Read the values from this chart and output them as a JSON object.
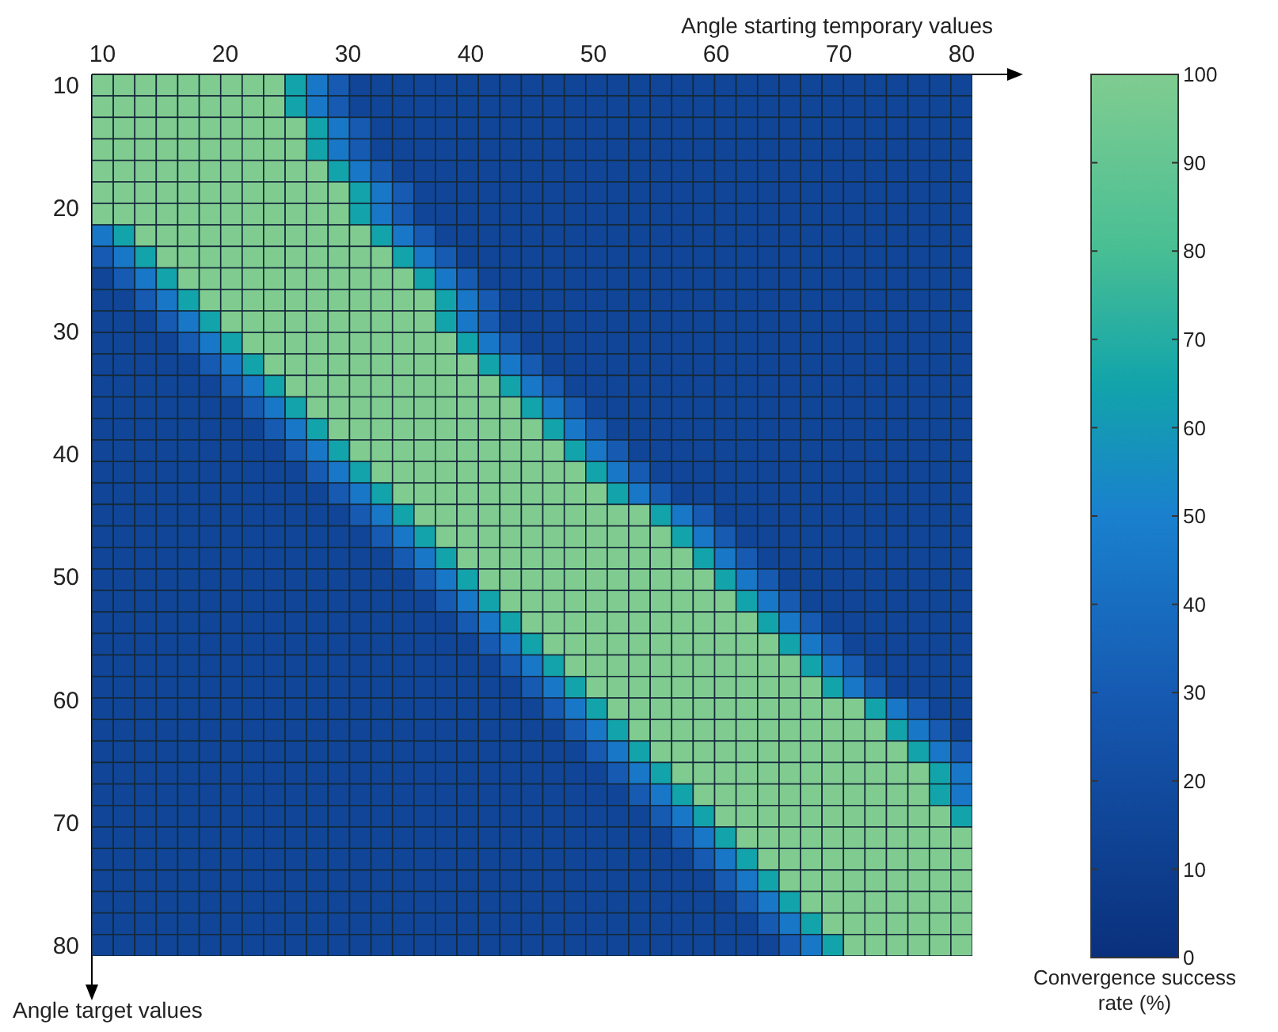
{
  "chart_data": {
    "type": "heatmap",
    "xlabel": "Angle starting temporary values",
    "ylabel": "Angle target values",
    "clabel": "Convergence success rate (%)",
    "xlim": [
      9.125,
      80.875
    ],
    "ylim": [
      80.875,
      9.125
    ],
    "xticks": [
      10,
      20,
      30,
      40,
      50,
      60,
      70,
      80
    ],
    "yticks": [
      10,
      20,
      30,
      40,
      50,
      60,
      70,
      80
    ],
    "clim": [
      0,
      100
    ],
    "cticks": [
      0,
      10,
      20,
      30,
      40,
      50,
      60,
      70,
      80,
      90,
      100
    ],
    "cells": [
      [
        100,
        100,
        100,
        100,
        100,
        100,
        100,
        100,
        100,
        65,
        45,
        30,
        15,
        15,
        15,
        15,
        15,
        15,
        15,
        15,
        15,
        15,
        15,
        15,
        15,
        15,
        15,
        15,
        15,
        15,
        15,
        15,
        15,
        15,
        15,
        15,
        15,
        15,
        15,
        15,
        15
      ],
      [
        100,
        100,
        100,
        100,
        100,
        100,
        100,
        100,
        100,
        65,
        45,
        30,
        15,
        15,
        15,
        15,
        15,
        15,
        15,
        15,
        15,
        15,
        15,
        15,
        15,
        15,
        15,
        15,
        15,
        15,
        15,
        15,
        15,
        15,
        15,
        15,
        15,
        15,
        15,
        15,
        15
      ],
      [
        100,
        100,
        100,
        100,
        100,
        100,
        100,
        100,
        100,
        100,
        65,
        45,
        30,
        15,
        15,
        15,
        15,
        15,
        15,
        15,
        15,
        15,
        15,
        15,
        15,
        15,
        15,
        15,
        15,
        15,
        15,
        15,
        15,
        15,
        15,
        15,
        15,
        15,
        15,
        15,
        15
      ],
      [
        100,
        100,
        100,
        100,
        100,
        100,
        100,
        100,
        100,
        100,
        65,
        45,
        30,
        15,
        15,
        15,
        15,
        15,
        15,
        15,
        15,
        15,
        15,
        15,
        15,
        15,
        15,
        15,
        15,
        15,
        15,
        15,
        15,
        15,
        15,
        15,
        15,
        15,
        15,
        15,
        15
      ],
      [
        100,
        100,
        100,
        100,
        100,
        100,
        100,
        100,
        100,
        100,
        100,
        65,
        45,
        30,
        15,
        15,
        15,
        15,
        15,
        15,
        15,
        15,
        15,
        15,
        15,
        15,
        15,
        15,
        15,
        15,
        15,
        15,
        15,
        15,
        15,
        15,
        15,
        15,
        15,
        15,
        15
      ],
      [
        100,
        100,
        100,
        100,
        100,
        100,
        100,
        100,
        100,
        100,
        100,
        100,
        65,
        45,
        30,
        15,
        15,
        15,
        15,
        15,
        15,
        15,
        15,
        15,
        15,
        15,
        15,
        15,
        15,
        15,
        15,
        15,
        15,
        15,
        15,
        15,
        15,
        15,
        15,
        15,
        15
      ],
      [
        100,
        100,
        100,
        100,
        100,
        100,
        100,
        100,
        100,
        100,
        100,
        100,
        65,
        45,
        30,
        15,
        15,
        15,
        15,
        15,
        15,
        15,
        15,
        15,
        15,
        15,
        15,
        15,
        15,
        15,
        15,
        15,
        15,
        15,
        15,
        15,
        15,
        15,
        15,
        15,
        15
      ],
      [
        45,
        65,
        100,
        100,
        100,
        100,
        100,
        100,
        100,
        100,
        100,
        100,
        100,
        65,
        45,
        30,
        15,
        15,
        15,
        15,
        15,
        15,
        15,
        15,
        15,
        15,
        15,
        15,
        15,
        15,
        15,
        15,
        15,
        15,
        15,
        15,
        15,
        15,
        15,
        15,
        15
      ],
      [
        30,
        45,
        65,
        100,
        100,
        100,
        100,
        100,
        100,
        100,
        100,
        100,
        100,
        100,
        65,
        45,
        30,
        15,
        15,
        15,
        15,
        15,
        15,
        15,
        15,
        15,
        15,
        15,
        15,
        15,
        15,
        15,
        15,
        15,
        15,
        15,
        15,
        15,
        15,
        15,
        15
      ],
      [
        15,
        30,
        45,
        65,
        100,
        100,
        100,
        100,
        100,
        100,
        100,
        100,
        100,
        100,
        100,
        65,
        45,
        30,
        15,
        15,
        15,
        15,
        15,
        15,
        15,
        15,
        15,
        15,
        15,
        15,
        15,
        15,
        15,
        15,
        15,
        15,
        15,
        15,
        15,
        15,
        15
      ],
      [
        15,
        15,
        30,
        45,
        65,
        100,
        100,
        100,
        100,
        100,
        100,
        100,
        100,
        100,
        100,
        100,
        65,
        45,
        30,
        15,
        15,
        15,
        15,
        15,
        15,
        15,
        15,
        15,
        15,
        15,
        15,
        15,
        15,
        15,
        15,
        15,
        15,
        15,
        15,
        15,
        15
      ],
      [
        15,
        15,
        15,
        30,
        45,
        65,
        100,
        100,
        100,
        100,
        100,
        100,
        100,
        100,
        100,
        100,
        65,
        45,
        30,
        15,
        15,
        15,
        15,
        15,
        15,
        15,
        15,
        15,
        15,
        15,
        15,
        15,
        15,
        15,
        15,
        15,
        15,
        15,
        15,
        15,
        15
      ],
      [
        15,
        15,
        15,
        15,
        30,
        45,
        65,
        100,
        100,
        100,
        100,
        100,
        100,
        100,
        100,
        100,
        100,
        65,
        45,
        30,
        15,
        15,
        15,
        15,
        15,
        15,
        15,
        15,
        15,
        15,
        15,
        15,
        15,
        15,
        15,
        15,
        15,
        15,
        15,
        15,
        15
      ],
      [
        15,
        15,
        15,
        15,
        15,
        30,
        45,
        65,
        100,
        100,
        100,
        100,
        100,
        100,
        100,
        100,
        100,
        100,
        65,
        45,
        30,
        15,
        15,
        15,
        15,
        15,
        15,
        15,
        15,
        15,
        15,
        15,
        15,
        15,
        15,
        15,
        15,
        15,
        15,
        15,
        15
      ],
      [
        15,
        15,
        15,
        15,
        15,
        15,
        30,
        45,
        65,
        100,
        100,
        100,
        100,
        100,
        100,
        100,
        100,
        100,
        100,
        65,
        45,
        30,
        15,
        15,
        15,
        15,
        15,
        15,
        15,
        15,
        15,
        15,
        15,
        15,
        15,
        15,
        15,
        15,
        15,
        15,
        15
      ],
      [
        15,
        15,
        15,
        15,
        15,
        15,
        15,
        30,
        45,
        65,
        100,
        100,
        100,
        100,
        100,
        100,
        100,
        100,
        100,
        100,
        65,
        45,
        30,
        15,
        15,
        15,
        15,
        15,
        15,
        15,
        15,
        15,
        15,
        15,
        15,
        15,
        15,
        15,
        15,
        15,
        15
      ],
      [
        15,
        15,
        15,
        15,
        15,
        15,
        15,
        15,
        30,
        45,
        65,
        100,
        100,
        100,
        100,
        100,
        100,
        100,
        100,
        100,
        100,
        65,
        45,
        30,
        15,
        15,
        15,
        15,
        15,
        15,
        15,
        15,
        15,
        15,
        15,
        15,
        15,
        15,
        15,
        15,
        15
      ],
      [
        15,
        15,
        15,
        15,
        15,
        15,
        15,
        15,
        15,
        30,
        45,
        65,
        100,
        100,
        100,
        100,
        100,
        100,
        100,
        100,
        100,
        100,
        65,
        45,
        30,
        15,
        15,
        15,
        15,
        15,
        15,
        15,
        15,
        15,
        15,
        15,
        15,
        15,
        15,
        15,
        15
      ],
      [
        15,
        15,
        15,
        15,
        15,
        15,
        15,
        15,
        15,
        15,
        30,
        45,
        65,
        100,
        100,
        100,
        100,
        100,
        100,
        100,
        100,
        100,
        100,
        65,
        45,
        30,
        15,
        15,
        15,
        15,
        15,
        15,
        15,
        15,
        15,
        15,
        15,
        15,
        15,
        15,
        15
      ],
      [
        15,
        15,
        15,
        15,
        15,
        15,
        15,
        15,
        15,
        15,
        15,
        30,
        45,
        65,
        100,
        100,
        100,
        100,
        100,
        100,
        100,
        100,
        100,
        100,
        65,
        45,
        30,
        15,
        15,
        15,
        15,
        15,
        15,
        15,
        15,
        15,
        15,
        15,
        15,
        15,
        15
      ],
      [
        15,
        15,
        15,
        15,
        15,
        15,
        15,
        15,
        15,
        15,
        15,
        15,
        30,
        45,
        65,
        100,
        100,
        100,
        100,
        100,
        100,
        100,
        100,
        100,
        100,
        100,
        65,
        45,
        30,
        15,
        15,
        15,
        15,
        15,
        15,
        15,
        15,
        15,
        15,
        15,
        15
      ],
      [
        15,
        15,
        15,
        15,
        15,
        15,
        15,
        15,
        15,
        15,
        15,
        15,
        15,
        30,
        45,
        65,
        100,
        100,
        100,
        100,
        100,
        100,
        100,
        100,
        100,
        100,
        100,
        65,
        45,
        30,
        15,
        15,
        15,
        15,
        15,
        15,
        15,
        15,
        15,
        15,
        15
      ],
      [
        15,
        15,
        15,
        15,
        15,
        15,
        15,
        15,
        15,
        15,
        15,
        15,
        15,
        15,
        30,
        45,
        65,
        100,
        100,
        100,
        100,
        100,
        100,
        100,
        100,
        100,
        100,
        100,
        65,
        45,
        30,
        15,
        15,
        15,
        15,
        15,
        15,
        15,
        15,
        15,
        15
      ],
      [
        15,
        15,
        15,
        15,
        15,
        15,
        15,
        15,
        15,
        15,
        15,
        15,
        15,
        15,
        15,
        30,
        45,
        65,
        100,
        100,
        100,
        100,
        100,
        100,
        100,
        100,
        100,
        100,
        100,
        65,
        45,
        30,
        15,
        15,
        15,
        15,
        15,
        15,
        15,
        15,
        15
      ],
      [
        15,
        15,
        15,
        15,
        15,
        15,
        15,
        15,
        15,
        15,
        15,
        15,
        15,
        15,
        15,
        15,
        30,
        45,
        65,
        100,
        100,
        100,
        100,
        100,
        100,
        100,
        100,
        100,
        100,
        100,
        65,
        45,
        30,
        15,
        15,
        15,
        15,
        15,
        15,
        15,
        15
      ],
      [
        15,
        15,
        15,
        15,
        15,
        15,
        15,
        15,
        15,
        15,
        15,
        15,
        15,
        15,
        15,
        15,
        15,
        30,
        45,
        65,
        100,
        100,
        100,
        100,
        100,
        100,
        100,
        100,
        100,
        100,
        100,
        65,
        45,
        30,
        15,
        15,
        15,
        15,
        15,
        15,
        15
      ],
      [
        15,
        15,
        15,
        15,
        15,
        15,
        15,
        15,
        15,
        15,
        15,
        15,
        15,
        15,
        15,
        15,
        15,
        15,
        30,
        45,
        65,
        100,
        100,
        100,
        100,
        100,
        100,
        100,
        100,
        100,
        100,
        100,
        65,
        45,
        30,
        15,
        15,
        15,
        15,
        15,
        15
      ],
      [
        15,
        15,
        15,
        15,
        15,
        15,
        15,
        15,
        15,
        15,
        15,
        15,
        15,
        15,
        15,
        15,
        15,
        15,
        15,
        30,
        45,
        65,
        100,
        100,
        100,
        100,
        100,
        100,
        100,
        100,
        100,
        100,
        100,
        65,
        45,
        30,
        15,
        15,
        15,
        15,
        15
      ],
      [
        15,
        15,
        15,
        15,
        15,
        15,
        15,
        15,
        15,
        15,
        15,
        15,
        15,
        15,
        15,
        15,
        15,
        15,
        15,
        15,
        30,
        45,
        65,
        100,
        100,
        100,
        100,
        100,
        100,
        100,
        100,
        100,
        100,
        100,
        65,
        45,
        30,
        15,
        15,
        15,
        15
      ],
      [
        15,
        15,
        15,
        15,
        15,
        15,
        15,
        15,
        15,
        15,
        15,
        15,
        15,
        15,
        15,
        15,
        15,
        15,
        15,
        15,
        15,
        30,
        45,
        65,
        100,
        100,
        100,
        100,
        100,
        100,
        100,
        100,
        100,
        100,
        100,
        100,
        65,
        45,
        30,
        15,
        15
      ],
      [
        15,
        15,
        15,
        15,
        15,
        15,
        15,
        15,
        15,
        15,
        15,
        15,
        15,
        15,
        15,
        15,
        15,
        15,
        15,
        15,
        15,
        15,
        30,
        45,
        65,
        100,
        100,
        100,
        100,
        100,
        100,
        100,
        100,
        100,
        100,
        100,
        100,
        65,
        45,
        30,
        15
      ],
      [
        15,
        15,
        15,
        15,
        15,
        15,
        15,
        15,
        15,
        15,
        15,
        15,
        15,
        15,
        15,
        15,
        15,
        15,
        15,
        15,
        15,
        15,
        15,
        30,
        45,
        65,
        100,
        100,
        100,
        100,
        100,
        100,
        100,
        100,
        100,
        100,
        100,
        100,
        65,
        45,
        30
      ],
      [
        15,
        15,
        15,
        15,
        15,
        15,
        15,
        15,
        15,
        15,
        15,
        15,
        15,
        15,
        15,
        15,
        15,
        15,
        15,
        15,
        15,
        15,
        15,
        15,
        30,
        45,
        65,
        100,
        100,
        100,
        100,
        100,
        100,
        100,
        100,
        100,
        100,
        100,
        100,
        65,
        45
      ],
      [
        15,
        15,
        15,
        15,
        15,
        15,
        15,
        15,
        15,
        15,
        15,
        15,
        15,
        15,
        15,
        15,
        15,
        15,
        15,
        15,
        15,
        15,
        15,
        15,
        15,
        30,
        45,
        65,
        100,
        100,
        100,
        100,
        100,
        100,
        100,
        100,
        100,
        100,
        100,
        65,
        45
      ],
      [
        15,
        15,
        15,
        15,
        15,
        15,
        15,
        15,
        15,
        15,
        15,
        15,
        15,
        15,
        15,
        15,
        15,
        15,
        15,
        15,
        15,
        15,
        15,
        15,
        15,
        15,
        30,
        45,
        65,
        100,
        100,
        100,
        100,
        100,
        100,
        100,
        100,
        100,
        100,
        100,
        65
      ],
      [
        15,
        15,
        15,
        15,
        15,
        15,
        15,
        15,
        15,
        15,
        15,
        15,
        15,
        15,
        15,
        15,
        15,
        15,
        15,
        15,
        15,
        15,
        15,
        15,
        15,
        15,
        15,
        30,
        45,
        65,
        100,
        100,
        100,
        100,
        100,
        100,
        100,
        100,
        100,
        100,
        100
      ],
      [
        15,
        15,
        15,
        15,
        15,
        15,
        15,
        15,
        15,
        15,
        15,
        15,
        15,
        15,
        15,
        15,
        15,
        15,
        15,
        15,
        15,
        15,
        15,
        15,
        15,
        15,
        15,
        15,
        30,
        45,
        65,
        100,
        100,
        100,
        100,
        100,
        100,
        100,
        100,
        100,
        100
      ],
      [
        15,
        15,
        15,
        15,
        15,
        15,
        15,
        15,
        15,
        15,
        15,
        15,
        15,
        15,
        15,
        15,
        15,
        15,
        15,
        15,
        15,
        15,
        15,
        15,
        15,
        15,
        15,
        15,
        15,
        30,
        45,
        65,
        100,
        100,
        100,
        100,
        100,
        100,
        100,
        100,
        100
      ],
      [
        15,
        15,
        15,
        15,
        15,
        15,
        15,
        15,
        15,
        15,
        15,
        15,
        15,
        15,
        15,
        15,
        15,
        15,
        15,
        15,
        15,
        15,
        15,
        15,
        15,
        15,
        15,
        15,
        15,
        15,
        30,
        45,
        65,
        100,
        100,
        100,
        100,
        100,
        100,
        100,
        100
      ],
      [
        15,
        15,
        15,
        15,
        15,
        15,
        15,
        15,
        15,
        15,
        15,
        15,
        15,
        15,
        15,
        15,
        15,
        15,
        15,
        15,
        15,
        15,
        15,
        15,
        15,
        15,
        15,
        15,
        15,
        15,
        15,
        30,
        45,
        65,
        100,
        100,
        100,
        100,
        100,
        100,
        100
      ],
      [
        15,
        15,
        15,
        15,
        15,
        15,
        15,
        15,
        15,
        15,
        15,
        15,
        15,
        15,
        15,
        15,
        15,
        15,
        15,
        15,
        15,
        15,
        15,
        15,
        15,
        15,
        15,
        15,
        15,
        15,
        15,
        15,
        30,
        45,
        65,
        100,
        100,
        100,
        100,
        100,
        100
      ]
    ]
  }
}
